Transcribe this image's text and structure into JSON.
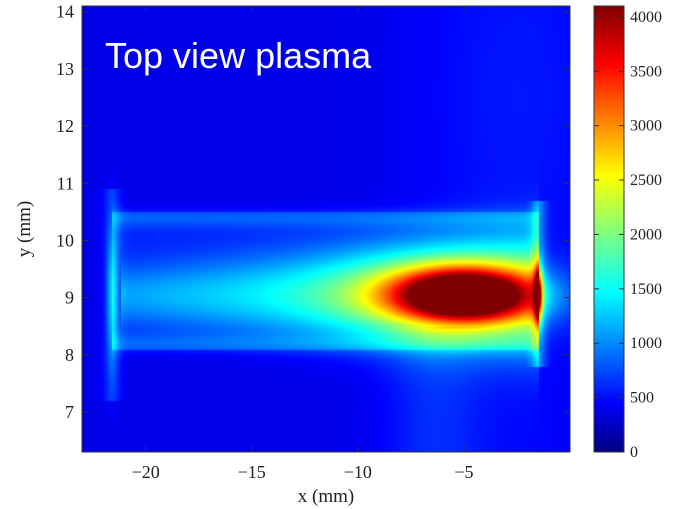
{
  "chart_data": {
    "type": "heatmap",
    "title": "Top view plasma",
    "xlabel": "x  (mm)",
    "ylabel": "y  (mm)",
    "xlim": [
      -23,
      0
    ],
    "ylim": [
      6.3,
      14.1
    ],
    "xticks": [
      -20,
      -15,
      -10,
      -5
    ],
    "xtick_labels": [
      "−20",
      "−15",
      "−10",
      "−5"
    ],
    "yticks": [
      7,
      8,
      9,
      10,
      11,
      12,
      13,
      14
    ],
    "ytick_labels": [
      "7",
      "8",
      "9",
      "10",
      "11",
      "12",
      "13",
      "14"
    ],
    "colorbar": {
      "colormap": "jet",
      "range": [
        0,
        4100
      ],
      "ticks": [
        0,
        500,
        1000,
        1500,
        2000,
        2500,
        3000,
        3500,
        4000
      ],
      "tick_labels": [
        "0",
        "500",
        "1000",
        "1500",
        "2000",
        "2500",
        "3000",
        "3500",
        "4000"
      ]
    },
    "features": {
      "background_intensity": 420,
      "peak": {
        "x": -5.0,
        "y": 9.05,
        "value": 4000
      },
      "jet_axis_y": 9.05,
      "jet_start_x": -21.2,
      "jet_end_x": -1.5,
      "channel_band_y": [
        8.1,
        10.5
      ],
      "left_wall_x": -21.6,
      "right_electrode_x": -1.5,
      "right_electrode_value": 3200
    }
  }
}
